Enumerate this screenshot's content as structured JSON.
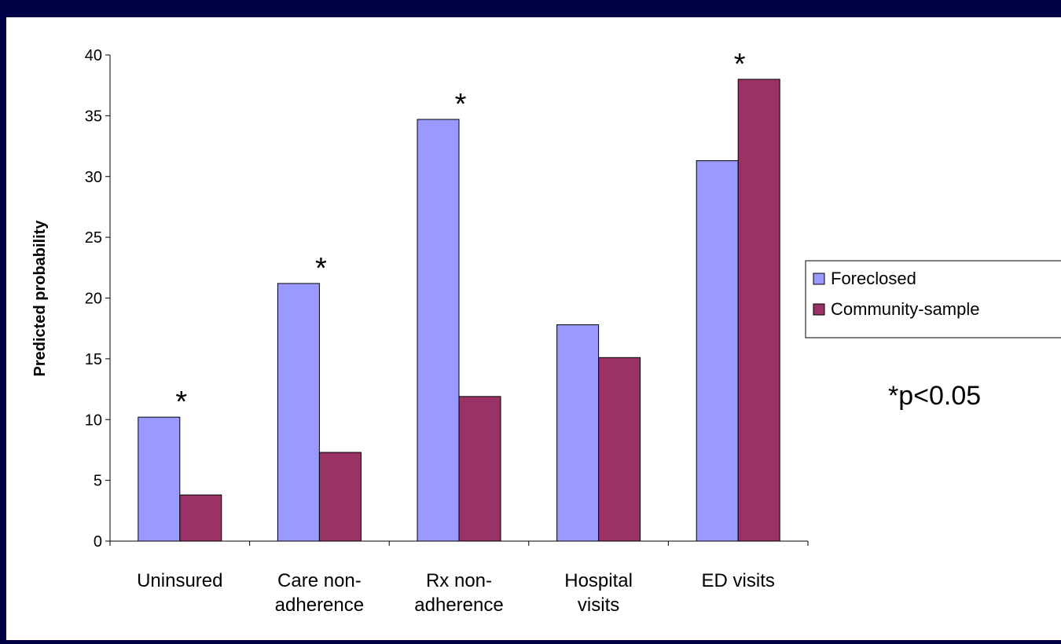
{
  "chart_data": {
    "type": "bar",
    "ylabel": "Predicted probability",
    "xlabel": "",
    "ylim": [
      0,
      40
    ],
    "y_ticks": [
      0,
      5,
      10,
      15,
      20,
      25,
      30,
      35,
      40
    ],
    "grid": false,
    "legend_position": "right",
    "categories": [
      [
        "Uninsured"
      ],
      [
        "Care non-",
        "adherence"
      ],
      [
        "Rx non-",
        "adherence"
      ],
      [
        "Hospital",
        "visits"
      ],
      [
        "ED visits"
      ]
    ],
    "series": [
      {
        "name": "Foreclosed",
        "color": "#9999ff",
        "values": [
          10.2,
          21.2,
          34.7,
          17.8,
          31.3
        ]
      },
      {
        "name": "Community-sample",
        "color": "#993366",
        "values": [
          3.8,
          7.3,
          11.9,
          15.1,
          38.0
        ]
      }
    ],
    "significance_marks": [
      {
        "category_index": 0,
        "label": "*"
      },
      {
        "category_index": 1,
        "label": "*"
      },
      {
        "category_index": 2,
        "label": "*"
      },
      {
        "category_index": 4,
        "label": "*"
      }
    ],
    "footnote": "*p<0.05"
  }
}
